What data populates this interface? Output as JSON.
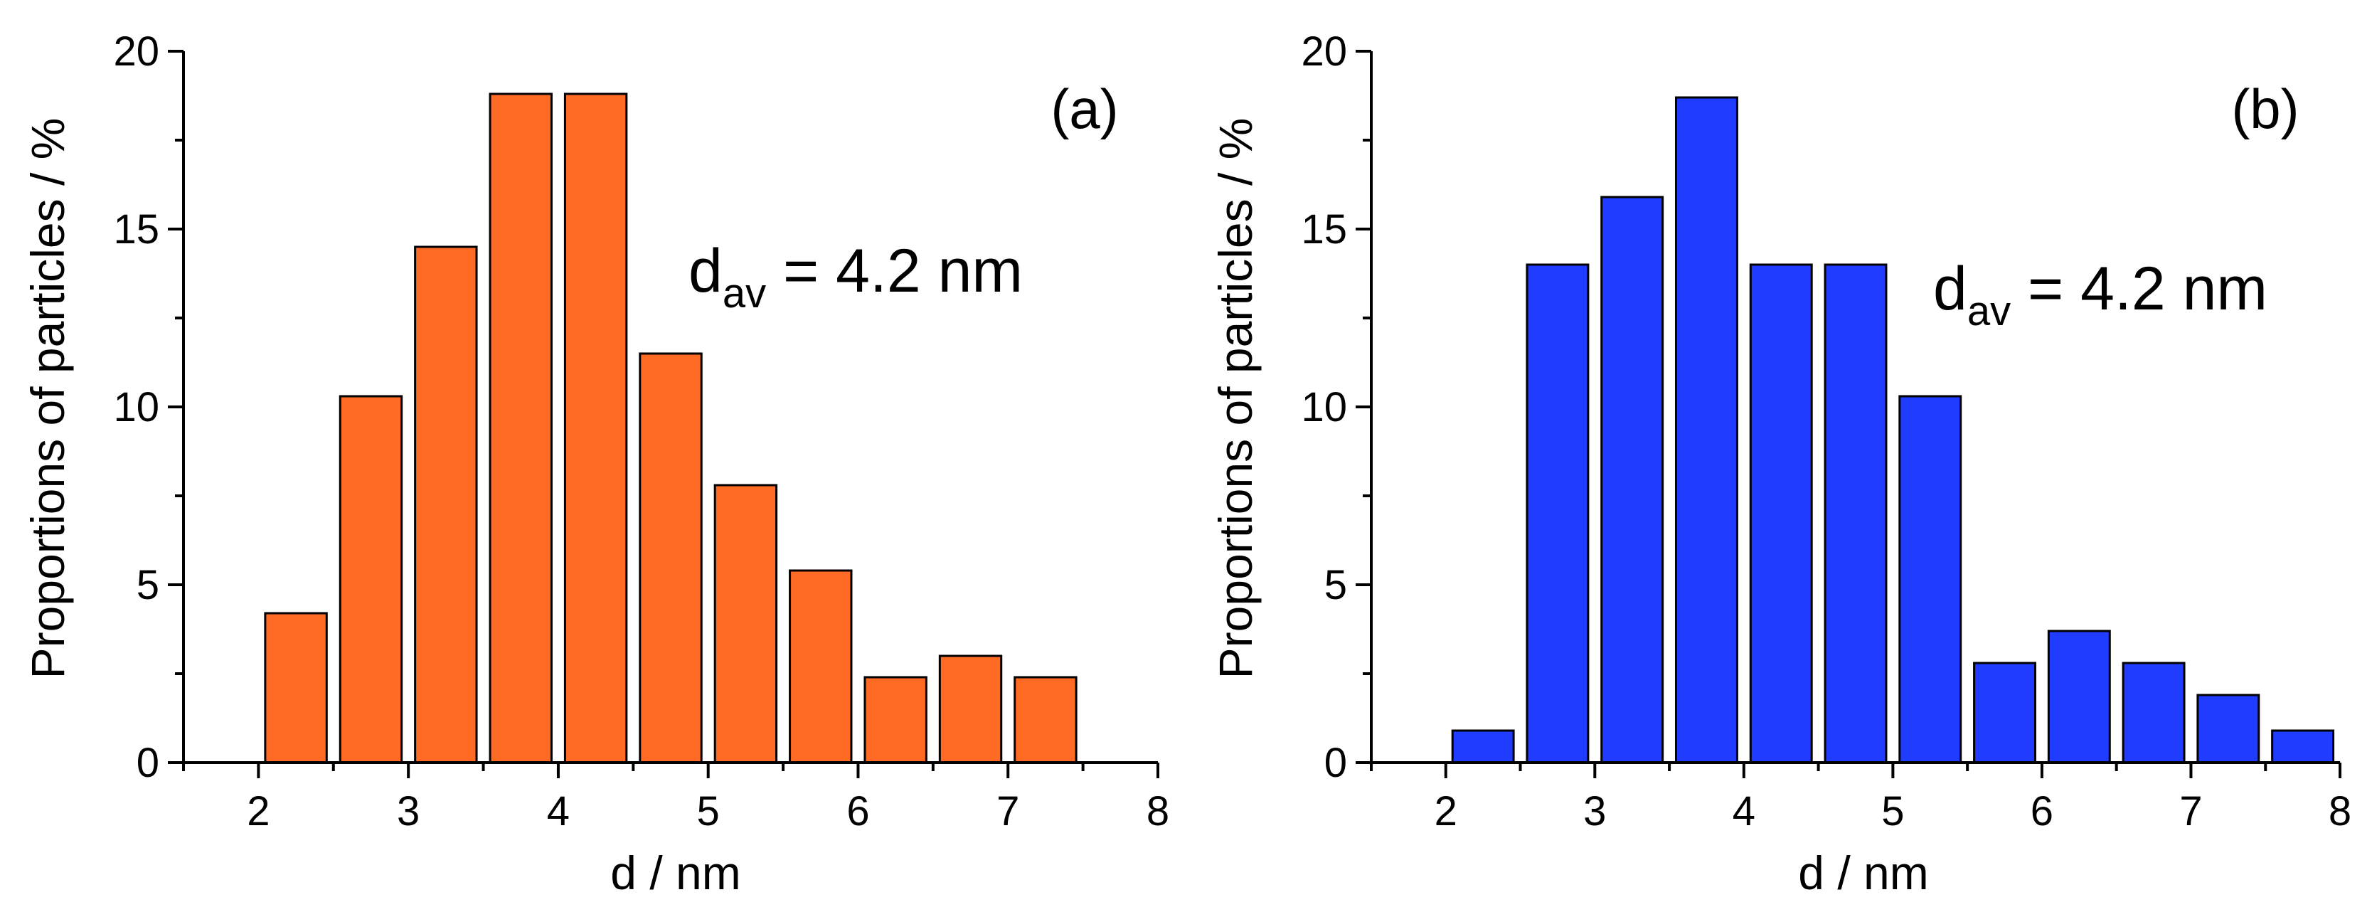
{
  "chart_data": [
    {
      "type": "bar",
      "panel_label": "(a)",
      "annotation": {
        "main": "d",
        "subscript": "av",
        "rest": " = 4.2 nm"
      },
      "xlabel": "d / nm",
      "ylabel": "Proportions of particles / %",
      "xlim": [
        1.5,
        8
      ],
      "ylim": [
        0,
        20
      ],
      "xticks": [
        2,
        3,
        4,
        5,
        6,
        7,
        8
      ],
      "yticks": [
        0,
        5,
        10,
        15,
        20
      ],
      "bin_width": 0.5,
      "color": "#ff6a24",
      "x": [
        2.25,
        2.75,
        3.25,
        3.75,
        4.25,
        4.75,
        5.25,
        5.75,
        6.25,
        6.75,
        7.25
      ],
      "values": [
        4.2,
        10.3,
        14.5,
        18.8,
        18.8,
        11.5,
        7.8,
        5.4,
        2.4,
        3.0,
        2.4
      ]
    },
    {
      "type": "bar",
      "panel_label": "(b)",
      "annotation": {
        "main": "d",
        "subscript": "av",
        "rest": " = 4.2 nm"
      },
      "xlabel": "d / nm",
      "ylabel": "Proportions of particles / %",
      "xlim": [
        1.5,
        8
      ],
      "ylim": [
        0,
        20
      ],
      "xticks": [
        2,
        3,
        4,
        5,
        6,
        7,
        8
      ],
      "yticks": [
        0,
        5,
        10,
        15,
        20
      ],
      "bin_width": 0.5,
      "color": "#1f3cff",
      "x": [
        2.25,
        2.75,
        3.25,
        3.75,
        4.25,
        4.75,
        5.25,
        5.75,
        6.25,
        6.75,
        7.25,
        7.75
      ],
      "values": [
        0.9,
        14.0,
        15.9,
        18.7,
        14.0,
        14.0,
        10.3,
        2.8,
        3.7,
        2.8,
        1.9,
        0.9
      ]
    }
  ]
}
